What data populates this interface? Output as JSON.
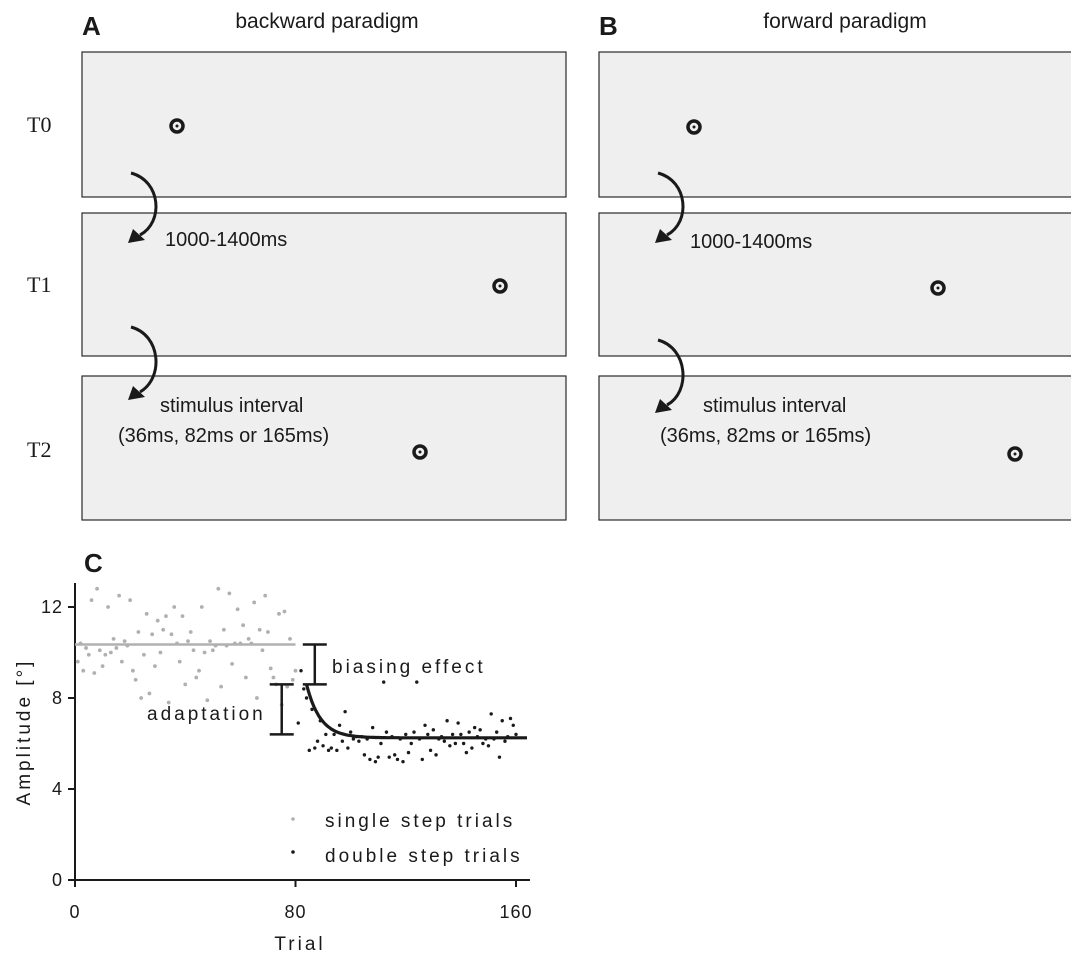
{
  "panels": {
    "A": {
      "letter": "A",
      "title": "backward paradigm",
      "interval1": "1000-1400ms",
      "interval2_line1": "stimulus interval",
      "interval2_line2": "(36ms, 82ms or 165ms)"
    },
    "B": {
      "letter": "B",
      "title": "forward paradigm",
      "interval1": "1000-1400ms",
      "interval2_line1": "stimulus interval",
      "interval2_line2": "(36ms, 82ms or 165ms)"
    },
    "C": {
      "letter": "C"
    }
  },
  "rows": [
    "T0",
    "T1",
    "T2"
  ],
  "icons": {
    "target": "fixation-target-icon",
    "arrow": "curved-arrow-icon"
  },
  "colors": {
    "screen_fill": "#efefef",
    "single_step": "#b0b0b0",
    "double_step": "#1a1a1a"
  },
  "chart_data": {
    "type": "scatter",
    "xlabel": "Trial",
    "ylabel": "Amplitude [°]",
    "xlim": [
      0,
      165
    ],
    "ylim": [
      0,
      13
    ],
    "xticks": [
      "0",
      "80",
      "160"
    ],
    "yticks": [
      "0",
      "4",
      "8",
      "12"
    ],
    "annotations": {
      "biasing": "biasing effect",
      "adaptation": "adaptation"
    },
    "series": [
      {
        "name": "single step trials",
        "color": "#b0b0b0",
        "x": [
          1,
          2,
          3,
          4,
          5,
          6,
          7,
          8,
          9,
          10,
          11,
          12,
          13,
          14,
          15,
          16,
          17,
          18,
          19,
          20,
          21,
          22,
          23,
          24,
          25,
          26,
          27,
          28,
          29,
          30,
          31,
          32,
          33,
          34,
          35,
          36,
          37,
          38,
          39,
          40,
          41,
          42,
          43,
          44,
          45,
          46,
          47,
          48,
          49,
          50,
          51,
          52,
          53,
          54,
          55,
          56,
          57,
          58,
          59,
          60,
          61,
          62,
          63,
          64,
          65,
          66,
          67,
          68,
          69,
          70,
          71,
          72,
          73,
          74,
          75,
          76,
          77,
          78,
          79,
          80
        ],
        "y": [
          9.6,
          10.4,
          9.2,
          10.2,
          9.9,
          12.3,
          9.1,
          12.8,
          10.1,
          9.4,
          9.9,
          12.0,
          10.0,
          10.6,
          10.2,
          12.5,
          9.6,
          10.5,
          10.3,
          12.3,
          9.2,
          8.8,
          10.9,
          8.0,
          9.9,
          11.7,
          8.2,
          10.8,
          9.4,
          11.4,
          10.0,
          11.0,
          11.6,
          7.8,
          10.8,
          12.0,
          10.4,
          9.6,
          11.6,
          8.6,
          10.5,
          10.9,
          10.1,
          8.9,
          9.2,
          12.0,
          10.0,
          7.9,
          10.5,
          10.1,
          10.3,
          12.8,
          8.5,
          11.0,
          10.3,
          12.6,
          9.5,
          10.4,
          11.9,
          10.4,
          11.2,
          8.9,
          10.6,
          10.4,
          12.2,
          8.0,
          11.0,
          10.1,
          12.5,
          10.9,
          9.3,
          8.9,
          8.6,
          11.7,
          7.7,
          11.8,
          8.5,
          10.6,
          8.8,
          9.2
        ]
      },
      {
        "name": "double step trials",
        "color": "#1a1a1a",
        "x": [
          81,
          82,
          83,
          84,
          85,
          86,
          87,
          88,
          89,
          90,
          91,
          92,
          93,
          94,
          95,
          96,
          97,
          98,
          99,
          100,
          101,
          102,
          103,
          104,
          105,
          106,
          107,
          108,
          109,
          110,
          111,
          112,
          113,
          114,
          115,
          116,
          117,
          118,
          119,
          120,
          121,
          122,
          123,
          124,
          125,
          126,
          127,
          128,
          129,
          130,
          131,
          132,
          133,
          134,
          135,
          136,
          137,
          138,
          139,
          140,
          141,
          142,
          143,
          144,
          145,
          146,
          147,
          148,
          149,
          150,
          151,
          152,
          153,
          154,
          155,
          156,
          157,
          158,
          159,
          160
        ],
        "y": [
          6.9,
          9.2,
          8.4,
          8.0,
          5.7,
          7.5,
          5.8,
          6.1,
          7.0,
          5.9,
          6.4,
          5.7,
          5.8,
          6.4,
          5.7,
          6.8,
          6.1,
          7.4,
          5.8,
          6.5,
          6.2,
          6.3,
          6.1,
          6.3,
          5.5,
          6.2,
          5.3,
          6.7,
          5.2,
          5.4,
          6.0,
          8.7,
          6.5,
          5.4,
          6.3,
          5.5,
          5.3,
          6.2,
          5.2,
          6.4,
          5.6,
          6.0,
          6.5,
          8.7,
          6.2,
          5.3,
          6.8,
          6.4,
          5.7,
          6.6,
          5.5,
          6.2,
          6.3,
          6.1,
          7.0,
          5.9,
          6.4,
          6.0,
          6.9,
          6.4,
          6.0,
          5.6,
          6.5,
          5.8,
          6.7,
          6.3,
          6.6,
          6.0,
          6.2,
          5.9,
          7.3,
          6.2,
          6.5,
          5.4,
          7.0,
          6.1,
          6.3,
          7.1,
          6.8,
          6.4
        ]
      }
    ],
    "fits": [
      {
        "series": "single step trials",
        "type": "constant",
        "x": [
          0,
          80
        ],
        "y": 10.35
      },
      {
        "series": "double step trials",
        "type": "exponential",
        "x": [
          84,
          164
        ],
        "start": 8.6,
        "asymptote": 6.25,
        "tau": 5
      }
    ],
    "brackets": [
      {
        "label": "biasing effect",
        "x": 87,
        "y": [
          8.6,
          10.35
        ]
      },
      {
        "label": "adaptation",
        "x": 75,
        "y": [
          6.4,
          8.6
        ]
      }
    ],
    "legend": {
      "position": "bottom-right",
      "entries": [
        "single step trials",
        "double step trials"
      ]
    }
  }
}
